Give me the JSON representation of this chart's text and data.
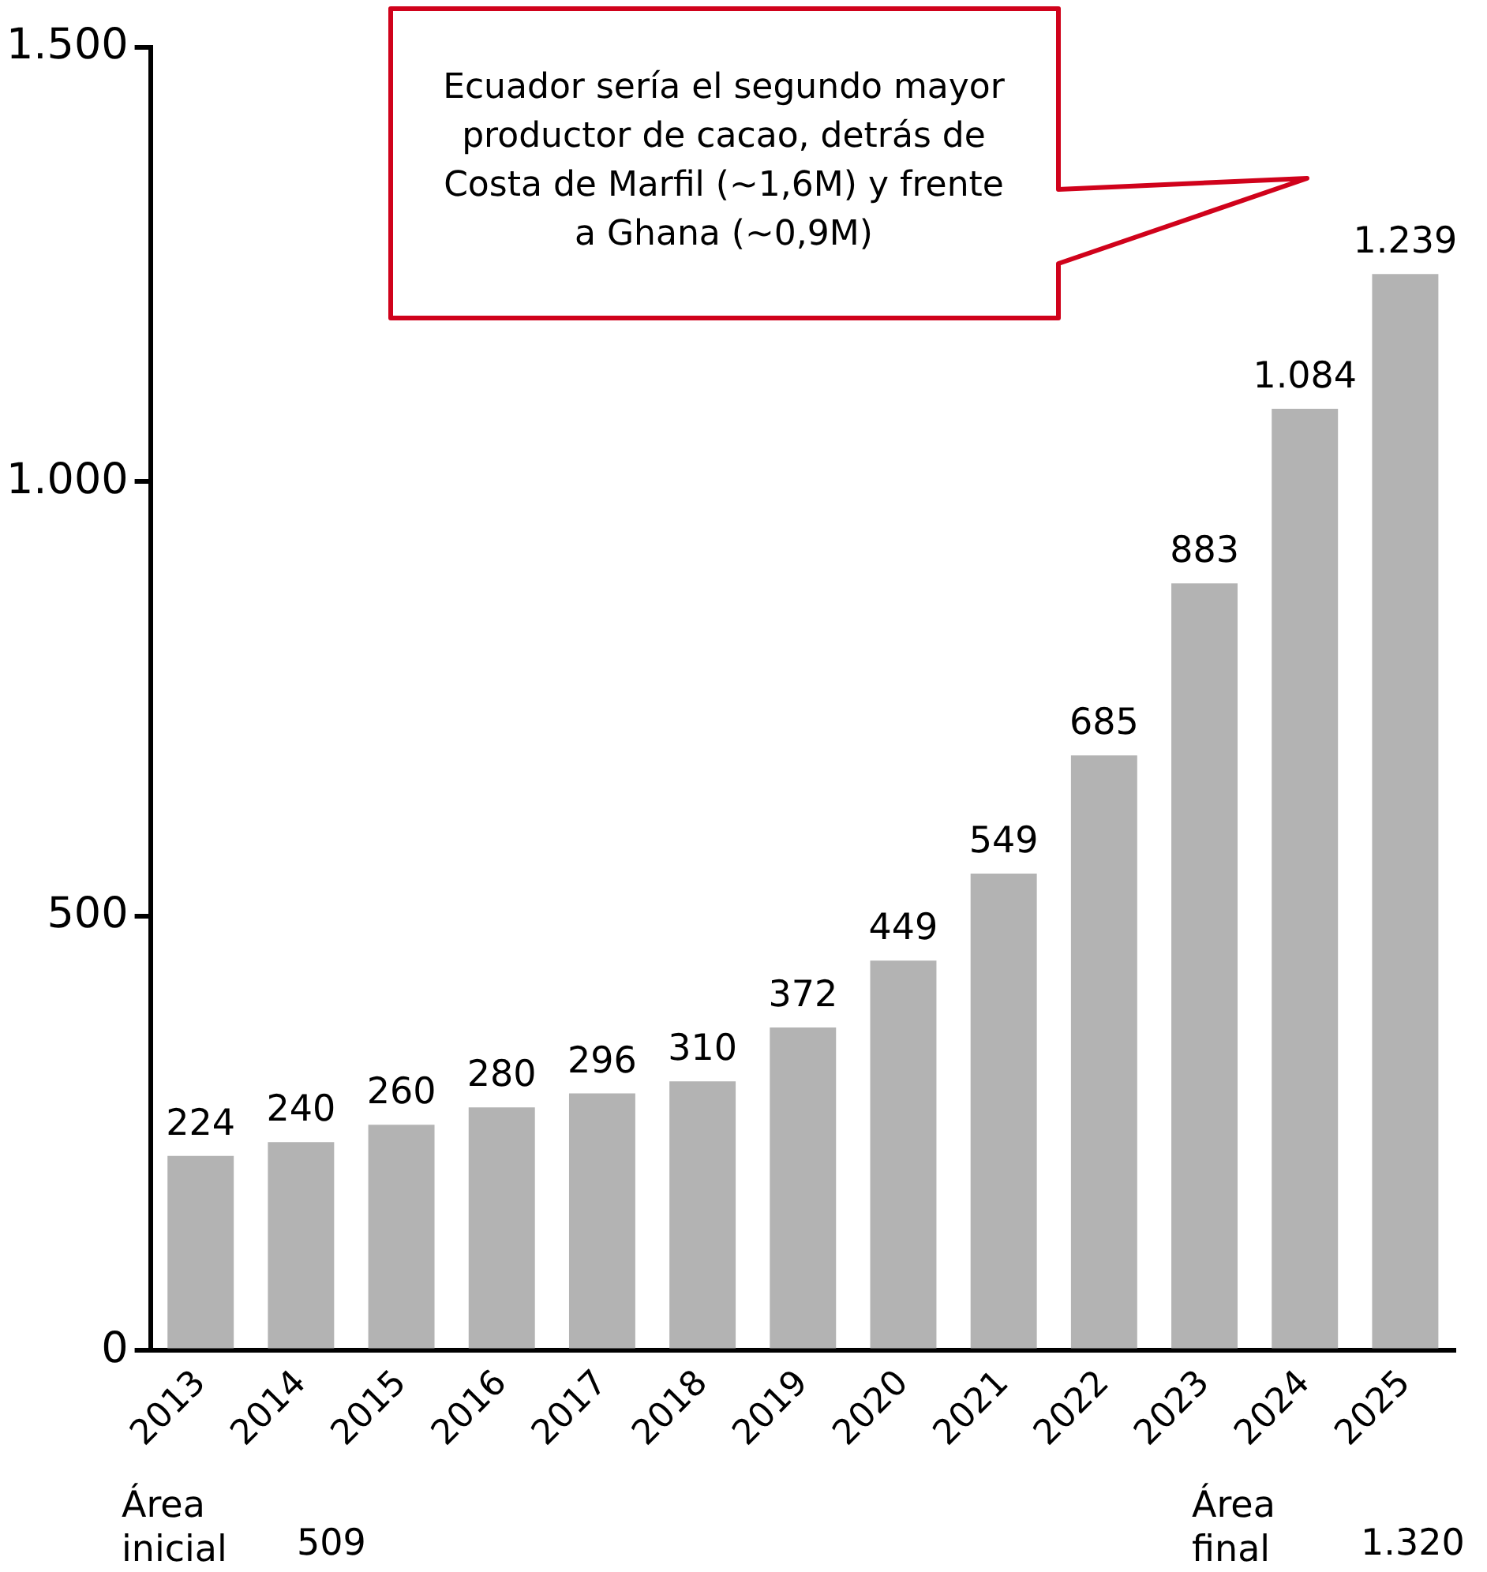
{
  "chart_data": {
    "type": "bar",
    "categories": [
      "2013",
      "2014",
      "2015",
      "2016",
      "2017",
      "2018",
      "2019",
      "2020",
      "2021",
      "2022",
      "2023",
      "2024",
      "2025"
    ],
    "values": [
      224,
      240,
      260,
      280,
      296,
      310,
      372,
      449,
      549,
      685,
      883,
      1084,
      1239
    ],
    "value_labels": [
      "224",
      "240",
      "260",
      "280",
      "296",
      "310",
      "372",
      "449",
      "549",
      "685",
      "883",
      "1.084",
      "1.239"
    ],
    "color": "#b3b3b3",
    "ylim": [
      0,
      1500
    ],
    "yticks": [
      0,
      500,
      {
        "value": 1000,
        "label": "1.000"
      },
      {
        "value": 1500,
        "label": "1.500"
      }
    ],
    "grid": false,
    "legend": false,
    "annotations": [
      "Ecuador sería el segundo mayor productor de cacao, detrás de Costa de Marfil (~1,6M) y frente a Ghana (~0,9M)",
      "Área inicial",
      "509",
      "Área final",
      "1.320"
    ]
  }
}
